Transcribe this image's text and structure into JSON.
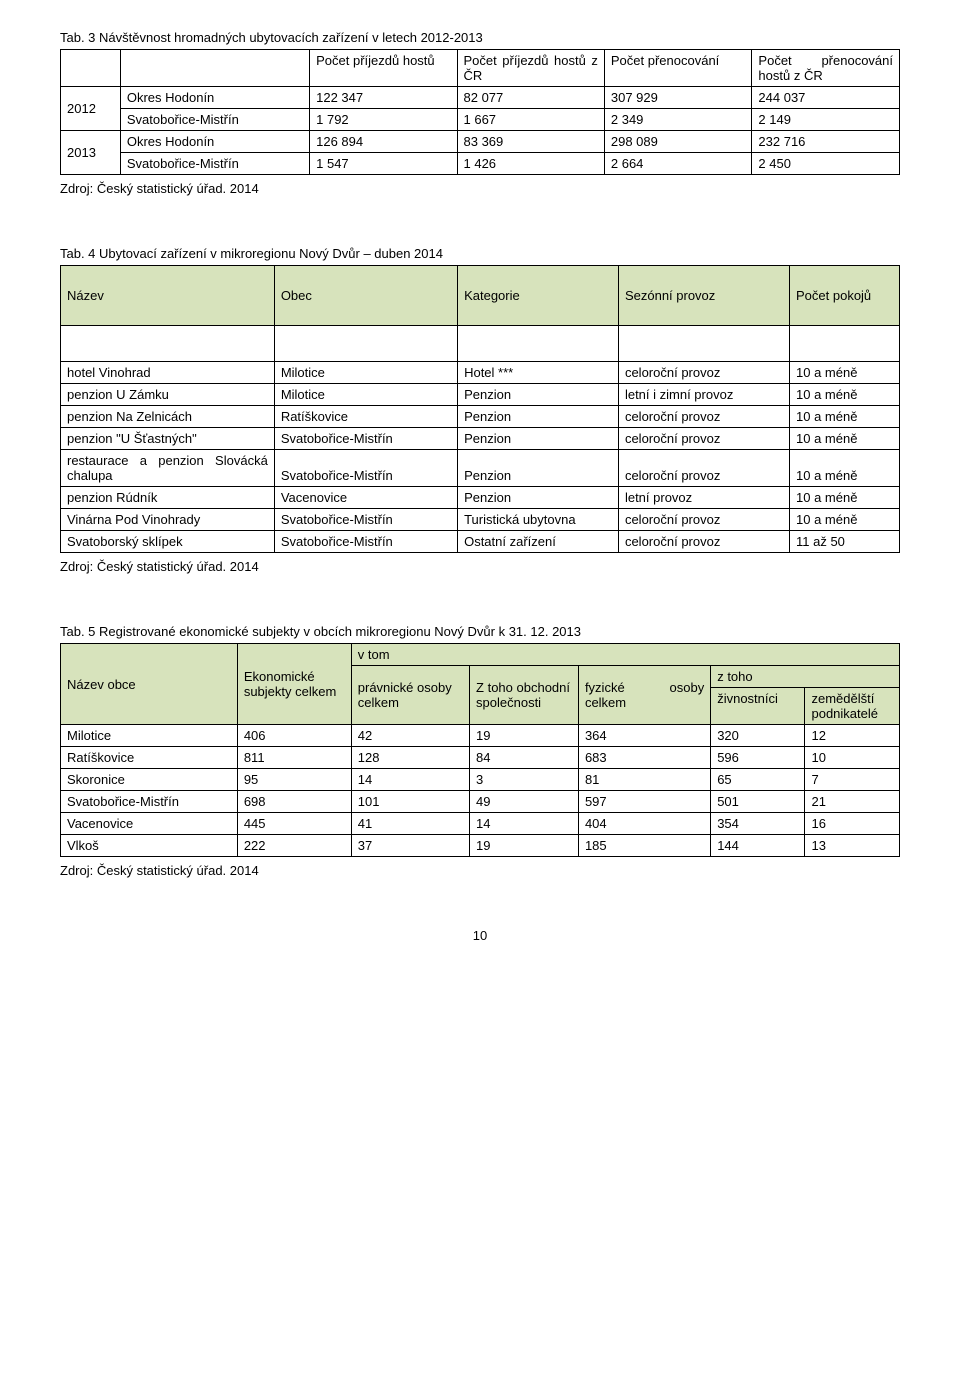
{
  "table1": {
    "title": "Tab. 3 Návštěvnost hromadných ubytovacích zařízení v letech 2012-2013",
    "headers": {
      "c1": "Počet příjezdů hostů",
      "c2": "Počet příjezdů hostů z ČR",
      "c3": "Počet přenocování",
      "c4": "Počet přenocování hostů z ČR"
    },
    "rows": [
      {
        "year": "2012",
        "label": "Okres Hodonín",
        "v": [
          "122 347",
          "82 077",
          "307 929",
          "244 037"
        ]
      },
      {
        "year": "",
        "label": "Svatobořice-Mistřín",
        "v": [
          "1 792",
          "1 667",
          "2 349",
          "2 149"
        ]
      },
      {
        "year": "2013",
        "label": "Okres Hodonín",
        "v": [
          "126 894",
          "83 369",
          "298 089",
          "232 716"
        ]
      },
      {
        "year": "",
        "label": "Svatobořice-Mistřín",
        "v": [
          "1 547",
          "1 426",
          "2 664",
          "2 450"
        ]
      }
    ],
    "source": "Zdroj: Český statistický úřad. 2014"
  },
  "table2": {
    "title": "Tab. 4 Ubytovací zařízení v mikroregionu Nový Dvůr – duben 2014",
    "headers": {
      "name": "Název",
      "obec": "Obec",
      "kat": "Kategorie",
      "sez": "Sezónní provoz",
      "pok": "Počet pokojů"
    },
    "rows": [
      {
        "name": "hotel Vinohrad",
        "obec": "Milotice",
        "kat": "Hotel ***",
        "sez": "celoroční provoz",
        "pok": "10 a méně"
      },
      {
        "name": "penzion U Zámku",
        "obec": "Milotice",
        "kat": "Penzion",
        "sez": "letní i zimní provoz",
        "pok": "10 a méně"
      },
      {
        "name": "penzion Na Zelnicách",
        "obec": "Ratíškovice",
        "kat": "Penzion",
        "sez": "celoroční provoz",
        "pok": "10 a méně"
      },
      {
        "name": "penzion \"U Šťastných\"",
        "obec": "Svatobořice-Mistřín",
        "kat": "Penzion",
        "sez": "celoroční provoz",
        "pok": "10 a méně"
      },
      {
        "name": "restaurace a penzion Slovácká chalupa",
        "obec": "Svatobořice-Mistřín",
        "kat": "Penzion",
        "sez": "celoroční provoz",
        "pok": "10 a méně"
      },
      {
        "name": "penzion Rúdník",
        "obec": "Vacenovice",
        "kat": "Penzion",
        "sez": "letní provoz",
        "pok": "10 a méně"
      },
      {
        "name": "Vinárna Pod Vinohrady",
        "obec": "Svatobořice-Mistřín",
        "kat": "Turistická ubytovna",
        "sez": "celoroční provoz",
        "pok": "10 a méně"
      },
      {
        "name": "Svatoborský sklípek",
        "obec": "Svatobořice-Mistřín",
        "kat": "Ostatní zařízení",
        "sez": "celoroční provoz",
        "pok": "11 až 50"
      }
    ],
    "source": "Zdroj: Český statistický úřad. 2014"
  },
  "table3": {
    "title": "Tab. 5 Registrované ekonomické subjekty v obcích mikroregionu Nový Dvůr k 31. 12. 2013",
    "headers": {
      "obec": "Název obce",
      "ek": "Ekonomické subjekty celkem",
      "vtom": "v tom",
      "prav": "právnické osoby celkem",
      "ztoho": "Z toho obchodní společnosti",
      "fyz": "fyzické osoby celkem",
      "ztoho2": "z toho",
      "ziv": "živnostníci",
      "zem": "zemědělští podnikatelé"
    },
    "rows": [
      {
        "obec": "Milotice",
        "v": [
          "406",
          "42",
          "19",
          "364",
          "320",
          "12"
        ]
      },
      {
        "obec": "Ratíškovice",
        "v": [
          "811",
          "128",
          "84",
          "683",
          "596",
          "10"
        ]
      },
      {
        "obec": "Skoronice",
        "v": [
          "95",
          "14",
          "3",
          "81",
          "65",
          "7"
        ]
      },
      {
        "obec": "Svatobořice-Mistřín",
        "v": [
          "698",
          "101",
          "49",
          "597",
          "501",
          "21"
        ]
      },
      {
        "obec": "Vacenovice",
        "v": [
          "445",
          "41",
          "14",
          "404",
          "354",
          "16"
        ]
      },
      {
        "obec": "Vlkoš",
        "v": [
          "222",
          "37",
          "19",
          "185",
          "144",
          "13"
        ]
      }
    ],
    "source": "Zdroj: Český statistický úřad. 2014"
  },
  "pageNumber": "10",
  "colors": {
    "headerBg": "#d7e3bc",
    "border": "#000000",
    "text": "#000000",
    "background": "#ffffff"
  }
}
